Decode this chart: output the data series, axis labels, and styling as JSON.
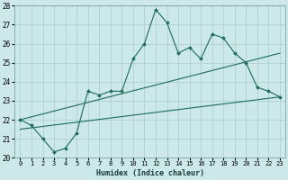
{
  "xlabel": "Humidex (Indice chaleur)",
  "bg_color": "#cce8e8",
  "grid_color": "#b0d0d0",
  "line_color": "#1a6b5a",
  "xlim": [
    -0.5,
    23.5
  ],
  "ylim": [
    20,
    28
  ],
  "x_ticks": [
    0,
    1,
    2,
    3,
    4,
    5,
    6,
    7,
    8,
    9,
    10,
    11,
    12,
    13,
    14,
    15,
    16,
    17,
    18,
    19,
    20,
    21,
    22,
    23
  ],
  "y_ticks": [
    20,
    21,
    22,
    23,
    24,
    25,
    26,
    27,
    28
  ],
  "main_line_x": [
    0,
    1,
    2,
    3,
    4,
    5,
    6,
    7,
    8,
    9,
    10,
    11,
    12,
    13,
    14,
    15,
    16,
    17,
    18,
    19,
    20,
    21,
    22,
    23
  ],
  "main_line_y": [
    22.0,
    21.7,
    21.0,
    20.3,
    20.5,
    21.3,
    23.5,
    23.3,
    23.5,
    23.5,
    25.2,
    26.0,
    27.8,
    27.1,
    25.5,
    25.8,
    25.2,
    26.5,
    26.3,
    25.5,
    25.0,
    23.7,
    23.5,
    23.2
  ],
  "upper_line_x": [
    0,
    23
  ],
  "upper_line_y": [
    22.0,
    25.5
  ],
  "lower_line_x": [
    0,
    23
  ],
  "lower_line_y": [
    21.5,
    23.2
  ],
  "marker": "D",
  "markersize": 2.0,
  "linewidth": 0.8,
  "tick_fontsize": 5.0,
  "xlabel_fontsize": 6.0
}
